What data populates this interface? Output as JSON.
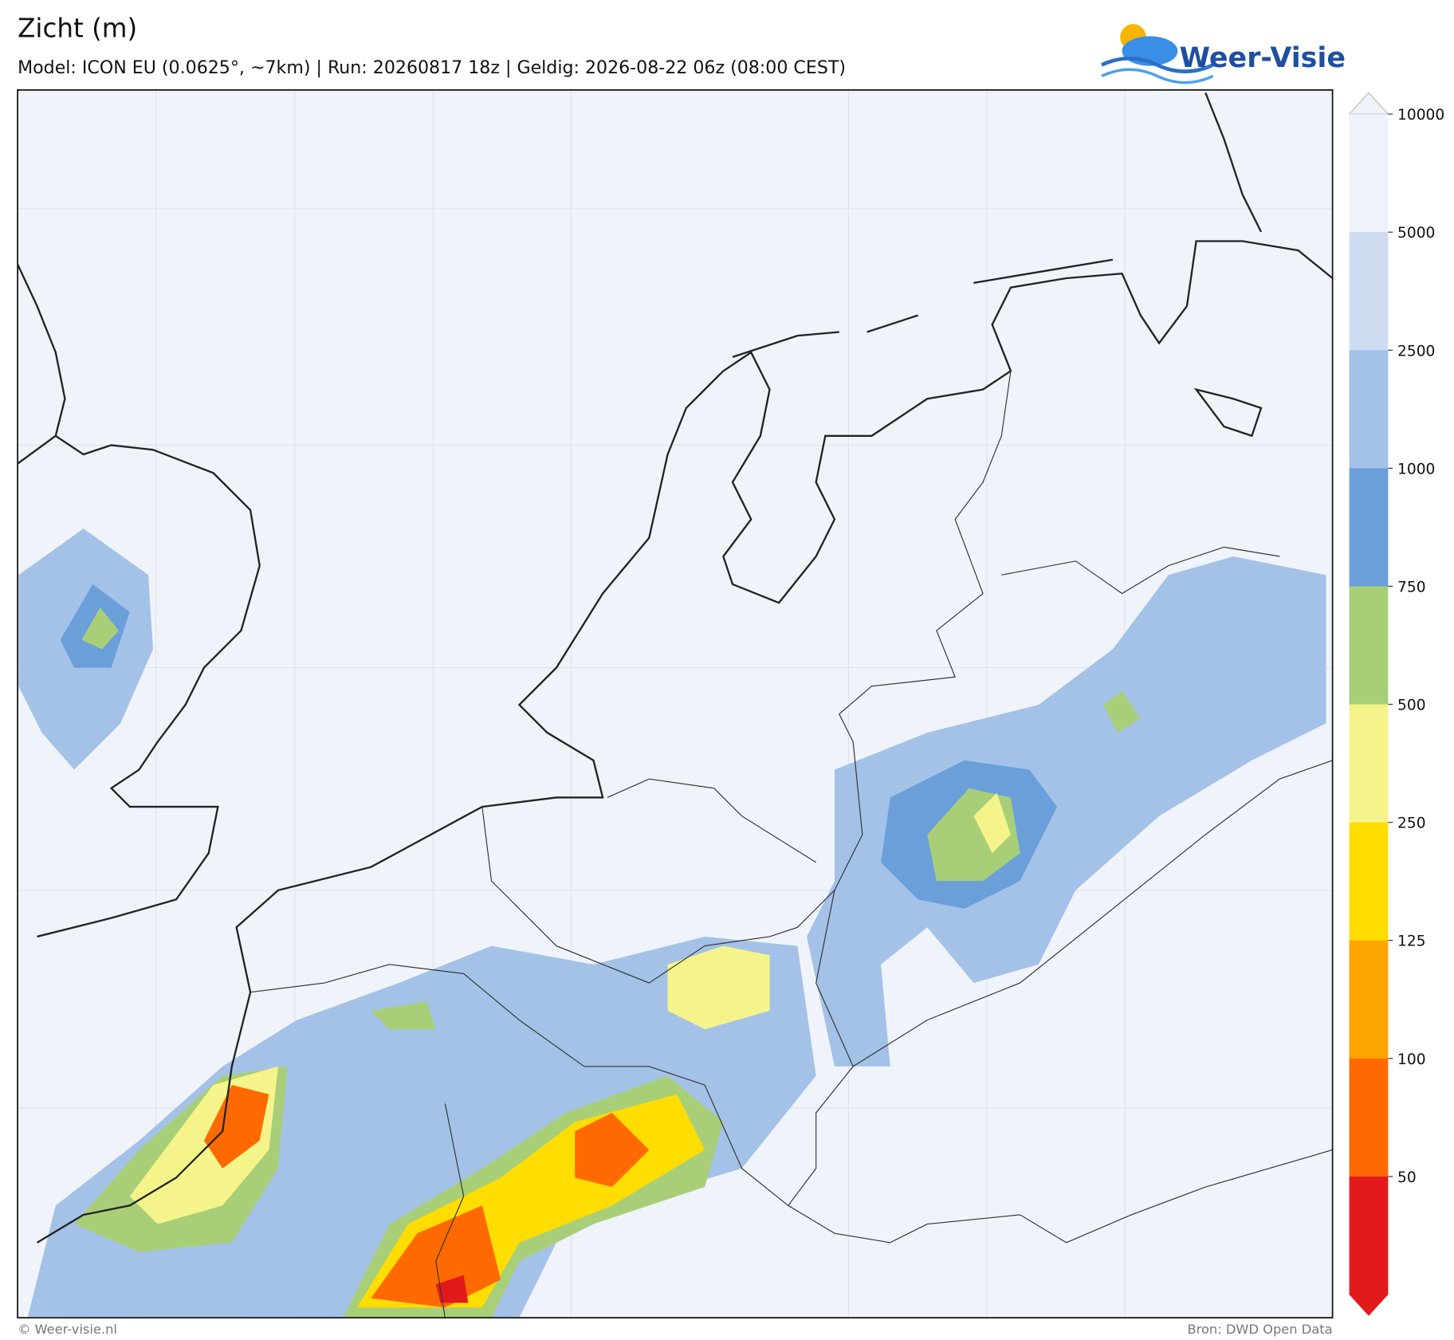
{
  "header": {
    "title": "Zicht (m)",
    "subtitle": "Model: ICON EU (0.0625°, ~7km)  |  Run: 20260817 18z  |  Geldig: 2026-08-22 06z (08:00 CEST)",
    "logo": "Weer-Visie"
  },
  "colorbar": {
    "ticks": [
      10000,
      5000,
      2500,
      1000,
      750,
      500,
      250,
      125,
      100,
      50
    ],
    "colors": [
      "#eef3fa",
      "#cddcf0",
      "#a4c2e8",
      "#6a9fd9",
      "#a8cf78",
      "#f4f48a",
      "#ffdd00",
      "#ffa500",
      "#ff6a00",
      "#e31a1c"
    ]
  },
  "footer": {
    "left": "© Weer-visie.nl",
    "right": "Bron: DWD Open Data"
  }
}
